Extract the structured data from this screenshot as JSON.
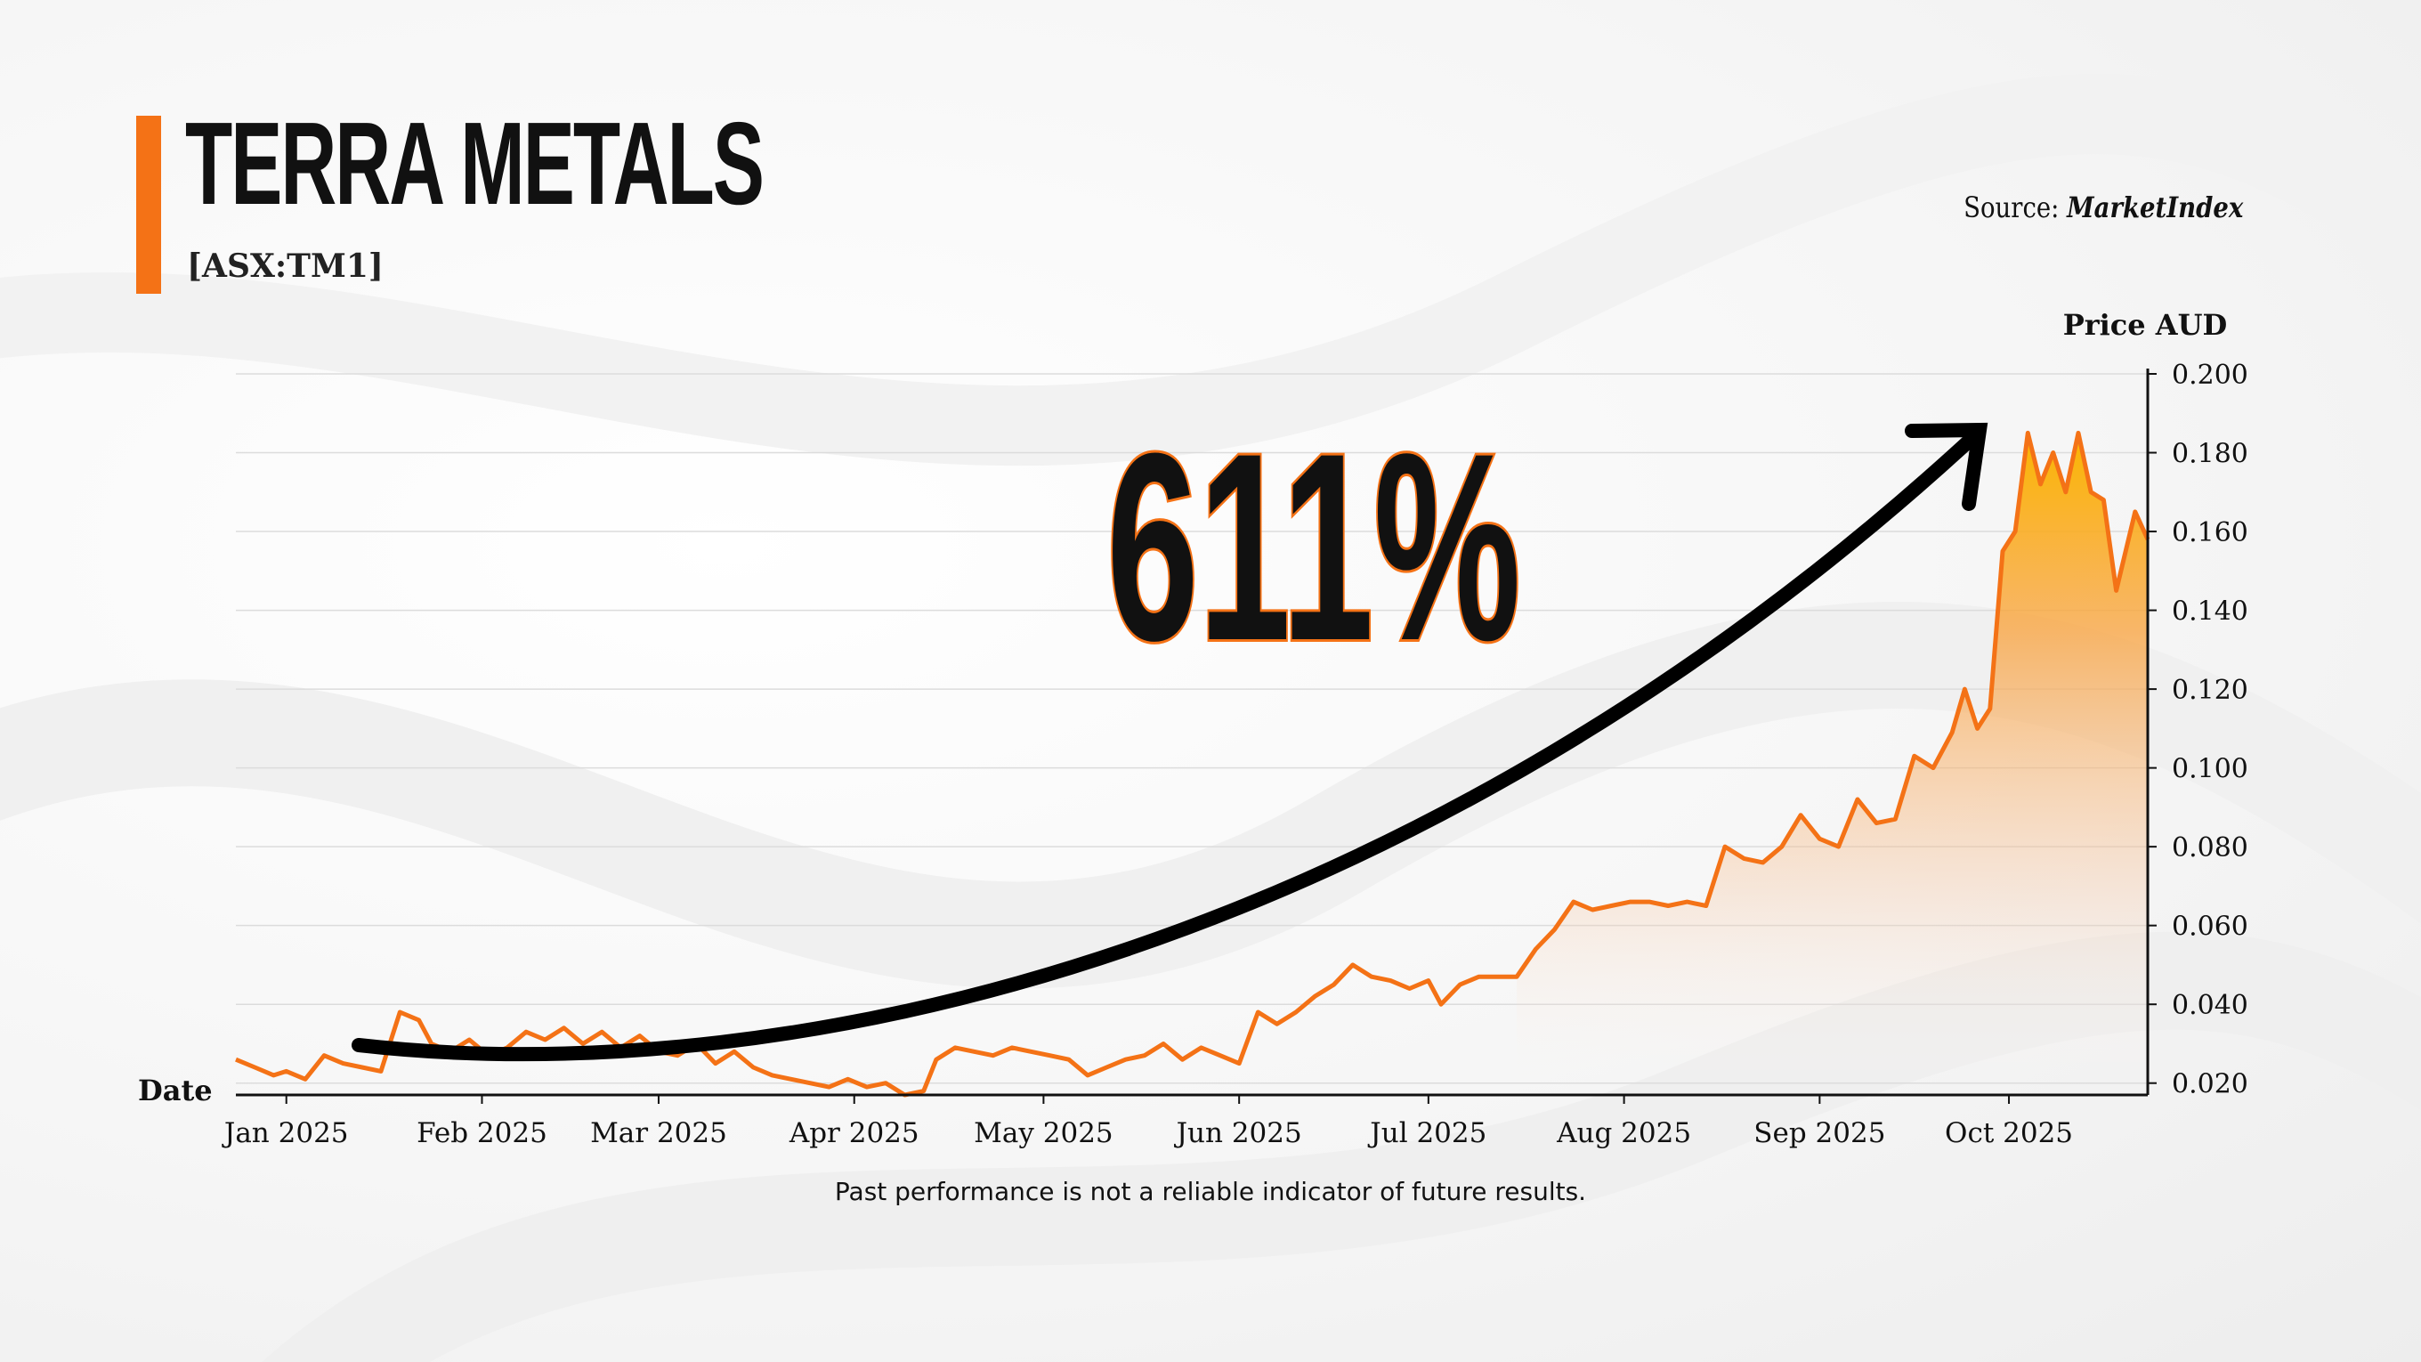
{
  "header": {
    "title": "TERRA METALS",
    "ticker": "[ASX:TM1]",
    "source_label": "Source:",
    "source_name": "MarketIndex"
  },
  "footer": {
    "disclaimer": "Past performance is not a reliable indicator of future results."
  },
  "colors": {
    "accent": "#f47216",
    "fill_top": "#fbb500",
    "text": "#111111"
  },
  "chart_data": {
    "type": "area",
    "title": "",
    "xlabel": "Date",
    "ylabel": "Price AUD",
    "ylim": [
      0.017,
      0.2
    ],
    "xlim": [
      "2024-12-24",
      "2025-10-23"
    ],
    "grid": true,
    "y_axis_position": "right",
    "yticks": [
      0.02,
      0.04,
      0.06,
      0.08,
      0.1,
      0.12,
      0.14,
      0.16,
      0.18,
      0.2
    ],
    "ytick_labels": [
      "0.020",
      "0.040",
      "0.060",
      "0.080",
      "0.100",
      "0.120",
      "0.140",
      "0.160",
      "0.180",
      "0.200"
    ],
    "xticks": [
      "2025-01-01",
      "2025-02-01",
      "2025-03-01",
      "2025-04-01",
      "2025-05-01",
      "2025-06-01",
      "2025-07-01",
      "2025-08-01",
      "2025-09-01",
      "2025-10-01"
    ],
    "xtick_labels": [
      "Jan 2025",
      "Feb 2025",
      "Mar 2025",
      "Apr 2025",
      "May 2025",
      "Jun 2025",
      "Jul 2025",
      "Aug 2025",
      "Sep 2025",
      "Oct 2025"
    ],
    "annotation": "611%",
    "series": [
      {
        "color": "#f47216",
        "points": [
          [
            "2024-12-24",
            0.026
          ],
          [
            "2024-12-27",
            0.024
          ],
          [
            "2024-12-30",
            0.022
          ],
          [
            "2025-01-01",
            0.023
          ],
          [
            "2025-01-04",
            0.021
          ],
          [
            "2025-01-07",
            0.027
          ],
          [
            "2025-01-10",
            0.025
          ],
          [
            "2025-01-13",
            0.024
          ],
          [
            "2025-01-16",
            0.023
          ],
          [
            "2025-01-19",
            0.038
          ],
          [
            "2025-01-22",
            0.036
          ],
          [
            "2025-01-24",
            0.03
          ],
          [
            "2025-01-27",
            0.028
          ],
          [
            "2025-01-30",
            0.031
          ],
          [
            "2025-02-02",
            0.027
          ],
          [
            "2025-02-05",
            0.029
          ],
          [
            "2025-02-08",
            0.033
          ],
          [
            "2025-02-11",
            0.031
          ],
          [
            "2025-02-14",
            0.034
          ],
          [
            "2025-02-17",
            0.03
          ],
          [
            "2025-02-20",
            0.033
          ],
          [
            "2025-02-23",
            0.029
          ],
          [
            "2025-02-26",
            0.032
          ],
          [
            "2025-03-01",
            0.028
          ],
          [
            "2025-03-04",
            0.027
          ],
          [
            "2025-03-07",
            0.03
          ],
          [
            "2025-03-10",
            0.025
          ],
          [
            "2025-03-13",
            0.028
          ],
          [
            "2025-03-16",
            0.024
          ],
          [
            "2025-03-19",
            0.022
          ],
          [
            "2025-03-22",
            0.021
          ],
          [
            "2025-03-25",
            0.02
          ],
          [
            "2025-03-28",
            0.019
          ],
          [
            "2025-03-31",
            0.021
          ],
          [
            "2025-04-03",
            0.019
          ],
          [
            "2025-04-06",
            0.02
          ],
          [
            "2025-04-09",
            0.017
          ],
          [
            "2025-04-12",
            0.018
          ],
          [
            "2025-04-14",
            0.026
          ],
          [
            "2025-04-17",
            0.029
          ],
          [
            "2025-04-20",
            0.028
          ],
          [
            "2025-04-23",
            0.027
          ],
          [
            "2025-04-26",
            0.029
          ],
          [
            "2025-04-29",
            0.028
          ],
          [
            "2025-05-02",
            0.027
          ],
          [
            "2025-05-05",
            0.026
          ],
          [
            "2025-05-08",
            0.022
          ],
          [
            "2025-05-11",
            0.024
          ],
          [
            "2025-05-14",
            0.026
          ],
          [
            "2025-05-17",
            0.027
          ],
          [
            "2025-05-20",
            0.03
          ],
          [
            "2025-05-23",
            0.026
          ],
          [
            "2025-05-26",
            0.029
          ],
          [
            "2025-05-29",
            0.027
          ],
          [
            "2025-06-01",
            0.025
          ],
          [
            "2025-06-04",
            0.038
          ],
          [
            "2025-06-07",
            0.035
          ],
          [
            "2025-06-10",
            0.038
          ],
          [
            "2025-06-13",
            0.042
          ],
          [
            "2025-06-16",
            0.045
          ],
          [
            "2025-06-19",
            0.05
          ],
          [
            "2025-06-22",
            0.047
          ],
          [
            "2025-06-25",
            0.046
          ],
          [
            "2025-06-28",
            0.044
          ],
          [
            "2025-07-01",
            0.046
          ],
          [
            "2025-07-03",
            0.04
          ],
          [
            "2025-07-06",
            0.045
          ],
          [
            "2025-07-09",
            0.047
          ],
          [
            "2025-07-12",
            0.047
          ],
          [
            "2025-07-15",
            0.047
          ],
          [
            "2025-07-18",
            0.054
          ],
          [
            "2025-07-21",
            0.059
          ],
          [
            "2025-07-24",
            0.066
          ],
          [
            "2025-07-27",
            0.064
          ],
          [
            "2025-07-30",
            0.065
          ],
          [
            "2025-08-02",
            0.066
          ],
          [
            "2025-08-05",
            0.066
          ],
          [
            "2025-08-08",
            0.065
          ],
          [
            "2025-08-11",
            0.066
          ],
          [
            "2025-08-14",
            0.065
          ],
          [
            "2025-08-17",
            0.08
          ],
          [
            "2025-08-20",
            0.077
          ],
          [
            "2025-08-23",
            0.076
          ],
          [
            "2025-08-26",
            0.08
          ],
          [
            "2025-08-29",
            0.088
          ],
          [
            "2025-09-01",
            0.082
          ],
          [
            "2025-09-04",
            0.08
          ],
          [
            "2025-09-07",
            0.092
          ],
          [
            "2025-09-10",
            0.086
          ],
          [
            "2025-09-13",
            0.087
          ],
          [
            "2025-09-16",
            0.103
          ],
          [
            "2025-09-19",
            0.1
          ],
          [
            "2025-09-22",
            0.109
          ],
          [
            "2025-09-24",
            0.12
          ],
          [
            "2025-09-26",
            0.11
          ],
          [
            "2025-09-28",
            0.115
          ],
          [
            "2025-09-30",
            0.155
          ],
          [
            "2025-10-02",
            0.16
          ],
          [
            "2025-10-04",
            0.185
          ],
          [
            "2025-10-06",
            0.172
          ],
          [
            "2025-10-08",
            0.18
          ],
          [
            "2025-10-10",
            0.17
          ],
          [
            "2025-10-12",
            0.185
          ],
          [
            "2025-10-14",
            0.17
          ],
          [
            "2025-10-16",
            0.168
          ],
          [
            "2025-10-18",
            0.145
          ],
          [
            "2025-10-21",
            0.165
          ],
          [
            "2025-10-23",
            0.158
          ]
        ]
      }
    ]
  }
}
